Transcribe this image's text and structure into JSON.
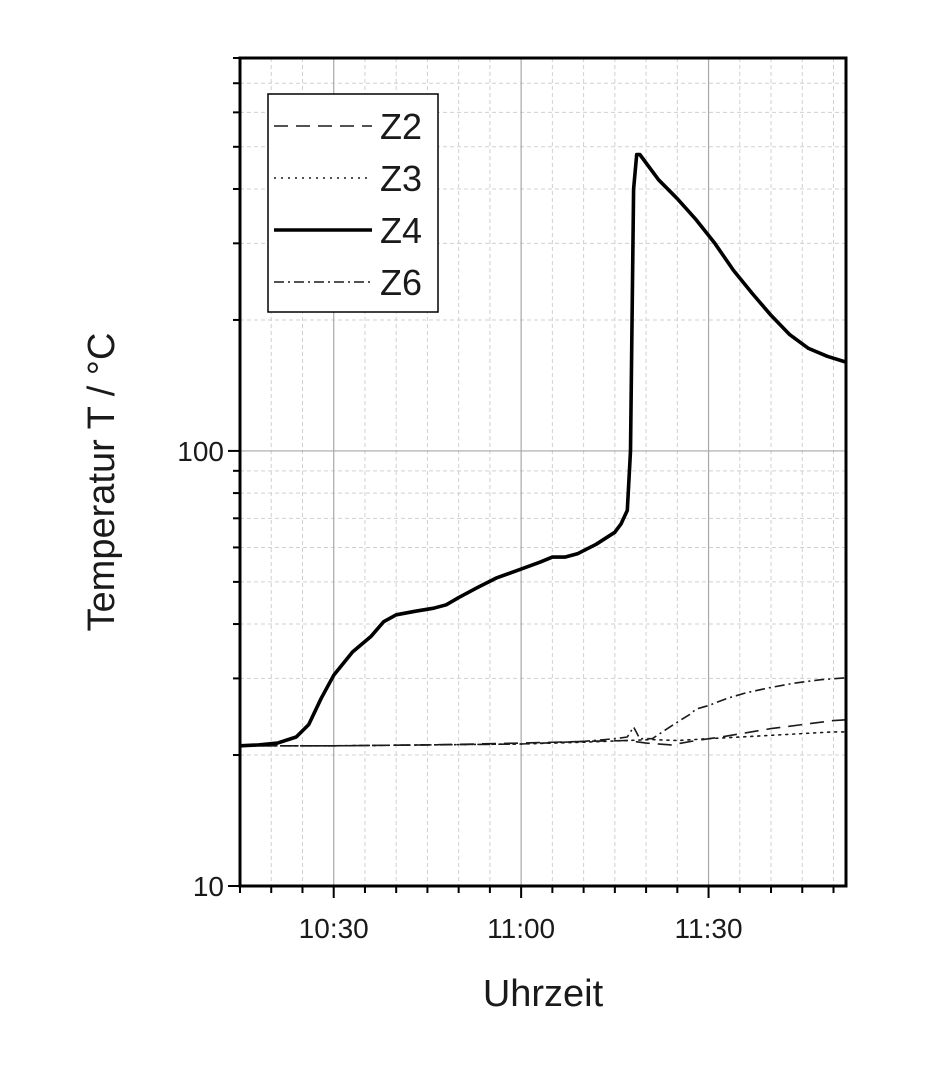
{
  "chart_data": {
    "type": "line",
    "xlabel": "Uhrzeit",
    "ylabel": "Temperatur T / °C",
    "yscale": "log",
    "xlim": [
      "10:15",
      "11:52"
    ],
    "ylim": [
      10,
      800
    ],
    "x_ticks": [
      "10:30",
      "11:00",
      "11:30"
    ],
    "y_ticks": [
      10,
      100
    ],
    "grid": true,
    "legend_position": "top-left",
    "series": [
      {
        "name": "Z2",
        "style": "dashed",
        "color": "#1a1a1a",
        "points": [
          [
            "10:15",
            21.0
          ],
          [
            "10:30",
            21.0
          ],
          [
            "10:45",
            21.1
          ],
          [
            "11:00",
            21.3
          ],
          [
            "11:10",
            21.5
          ],
          [
            "11:17",
            21.6
          ],
          [
            "11:20",
            21.3
          ],
          [
            "11:24",
            21.1
          ],
          [
            "11:28",
            21.6
          ],
          [
            "11:32",
            22.0
          ],
          [
            "11:36",
            22.5
          ],
          [
            "11:40",
            23.0
          ],
          [
            "11:45",
            23.5
          ],
          [
            "11:50",
            24.0
          ],
          [
            "11:52",
            24.1
          ]
        ]
      },
      {
        "name": "Z3",
        "style": "dotted",
        "color": "#1a1a1a",
        "points": [
          [
            "10:15",
            21.0
          ],
          [
            "10:30",
            21.0
          ],
          [
            "10:45",
            21.1
          ],
          [
            "11:00",
            21.2
          ],
          [
            "11:10",
            21.4
          ],
          [
            "11:17",
            21.6
          ],
          [
            "11:21",
            21.7
          ],
          [
            "11:25",
            21.6
          ],
          [
            "11:30",
            21.8
          ],
          [
            "11:35",
            22.0
          ],
          [
            "11:40",
            22.2
          ],
          [
            "11:45",
            22.4
          ],
          [
            "11:50",
            22.6
          ],
          [
            "11:52",
            22.6
          ]
        ]
      },
      {
        "name": "Z4",
        "style": "solid",
        "color": "#000000",
        "points": [
          [
            "10:15",
            21.0
          ],
          [
            "10:18",
            21.1
          ],
          [
            "10:21",
            21.3
          ],
          [
            "10:24",
            22.0
          ],
          [
            "10:26",
            23.5
          ],
          [
            "10:28",
            27.0
          ],
          [
            "10:30",
            30.5
          ],
          [
            "10:33",
            34.5
          ],
          [
            "10:36",
            37.5
          ],
          [
            "10:38",
            40.5
          ],
          [
            "10:40",
            42.0
          ],
          [
            "10:43",
            42.8
          ],
          [
            "10:46",
            43.5
          ],
          [
            "10:48",
            44.3
          ],
          [
            "10:50",
            46.0
          ],
          [
            "10:53",
            48.5
          ],
          [
            "10:56",
            51.0
          ],
          [
            "11:00",
            53.5
          ],
          [
            "11:03",
            55.5
          ],
          [
            "11:05",
            57.0
          ],
          [
            "11:07",
            57.0
          ],
          [
            "11:09",
            58.0
          ],
          [
            "11:12",
            61.0
          ],
          [
            "11:15",
            65.0
          ],
          [
            "11:16",
            68.0
          ],
          [
            "11:17",
            73.0
          ],
          [
            "11:17.5",
            100.0
          ],
          [
            "11:18",
            400.0
          ],
          [
            "11:18.5",
            480.0
          ],
          [
            "11:19",
            480.0
          ],
          [
            "11:22",
            420.0
          ],
          [
            "11:25",
            380.0
          ],
          [
            "11:28",
            340.0
          ],
          [
            "11:31",
            300.0
          ],
          [
            "11:34",
            260.0
          ],
          [
            "11:37",
            230.0
          ],
          [
            "11:40",
            205.0
          ],
          [
            "11:43",
            185.0
          ],
          [
            "11:46",
            172.0
          ],
          [
            "11:49",
            165.0
          ],
          [
            "11:52",
            160.0
          ]
        ]
      },
      {
        "name": "Z6",
        "style": "dash-dot",
        "color": "#1a1a1a",
        "points": [
          [
            "10:15",
            21.0
          ],
          [
            "10:30",
            21.0
          ],
          [
            "10:45",
            21.1
          ],
          [
            "11:00",
            21.2
          ],
          [
            "11:10",
            21.5
          ],
          [
            "11:15",
            21.8
          ],
          [
            "11:17",
            22.0
          ],
          [
            "11:18",
            23.2
          ],
          [
            "11:19",
            21.8
          ],
          [
            "11:21",
            21.8
          ],
          [
            "11:23",
            22.8
          ],
          [
            "11:25",
            23.8
          ],
          [
            "11:27",
            24.8
          ],
          [
            "11:28",
            25.5
          ],
          [
            "11:30",
            26.0
          ],
          [
            "11:33",
            27.0
          ],
          [
            "11:36",
            27.8
          ],
          [
            "11:40",
            28.6
          ],
          [
            "11:44",
            29.3
          ],
          [
            "11:48",
            29.8
          ],
          [
            "11:52",
            30.1
          ]
        ]
      }
    ]
  }
}
